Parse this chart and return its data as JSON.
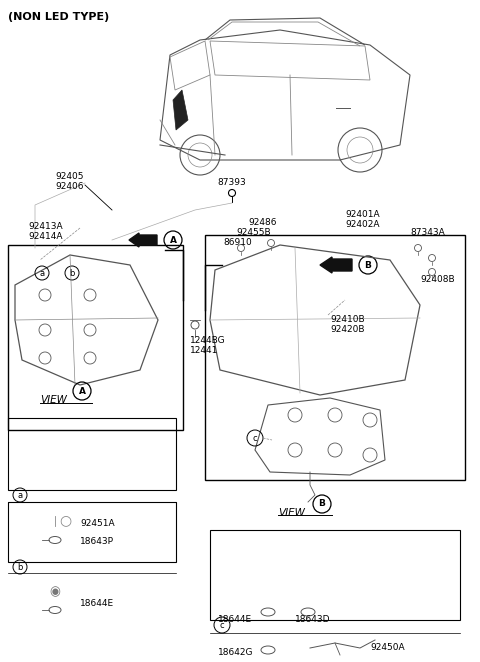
{
  "title": "(NON LED TYPE)",
  "bg_color": "#ffffff",
  "line_color": "#000000",
  "text_color": "#000000",
  "gray_color": "#888888",
  "light_gray": "#cccccc",
  "fig_width": 4.8,
  "fig_height": 6.62,
  "dpi": 100,
  "part_labels": {
    "top_left": [
      "92405",
      "92406"
    ],
    "car_center": "87393",
    "view_a_top": [
      "92413A",
      "92414A"
    ],
    "view_a_label": "A",
    "view_b_top_left": [
      "92455B",
      "86910"
    ],
    "view_b_top_right": [
      "92401A",
      "92402A"
    ],
    "view_b_far_right": "87343A",
    "view_b_right_low": "92408B",
    "view_b_label": "B",
    "view_b_mid": [
      "92410B",
      "92420B"
    ],
    "screw": [
      "1244BG",
      "12441"
    ],
    "box_a_top": "92451A",
    "box_a_mid": "18643P",
    "box_b_label": "18644E",
    "view_b_label2": "92486",
    "box_c_labels": [
      "18642G",
      "92450A",
      "18644E",
      "18643D"
    ]
  },
  "annotations": {
    "circle_a": "a",
    "circle_b": "b",
    "circle_c": "c",
    "view_a_text": "VIEW",
    "view_b_text": "VIEW"
  }
}
